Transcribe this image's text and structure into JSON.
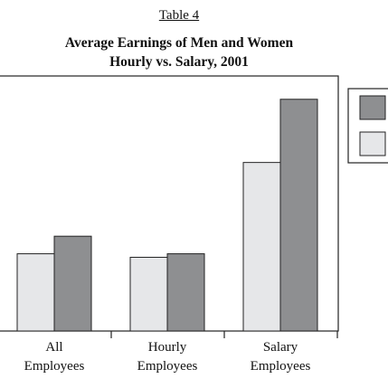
{
  "caption": "Table 4",
  "chart_data": {
    "type": "bar",
    "title": "Average Earnings of Men and Women",
    "subtitle": "Hourly vs. Salary, 2001",
    "categories": [
      [
        "All",
        "Employees"
      ],
      [
        "Hourly",
        "Employees"
      ],
      [
        "Salary",
        "Employees"
      ]
    ],
    "series": [
      {
        "color": "#e6e7e9",
        "values": [
          22,
          21,
          48
        ]
      },
      {
        "color": "#8e8f91",
        "values": [
          27,
          22,
          66
        ]
      }
    ],
    "ylim": [
      0,
      68
    ],
    "xlabel": "",
    "ylabel": "",
    "grid": false,
    "legend": "right"
  }
}
